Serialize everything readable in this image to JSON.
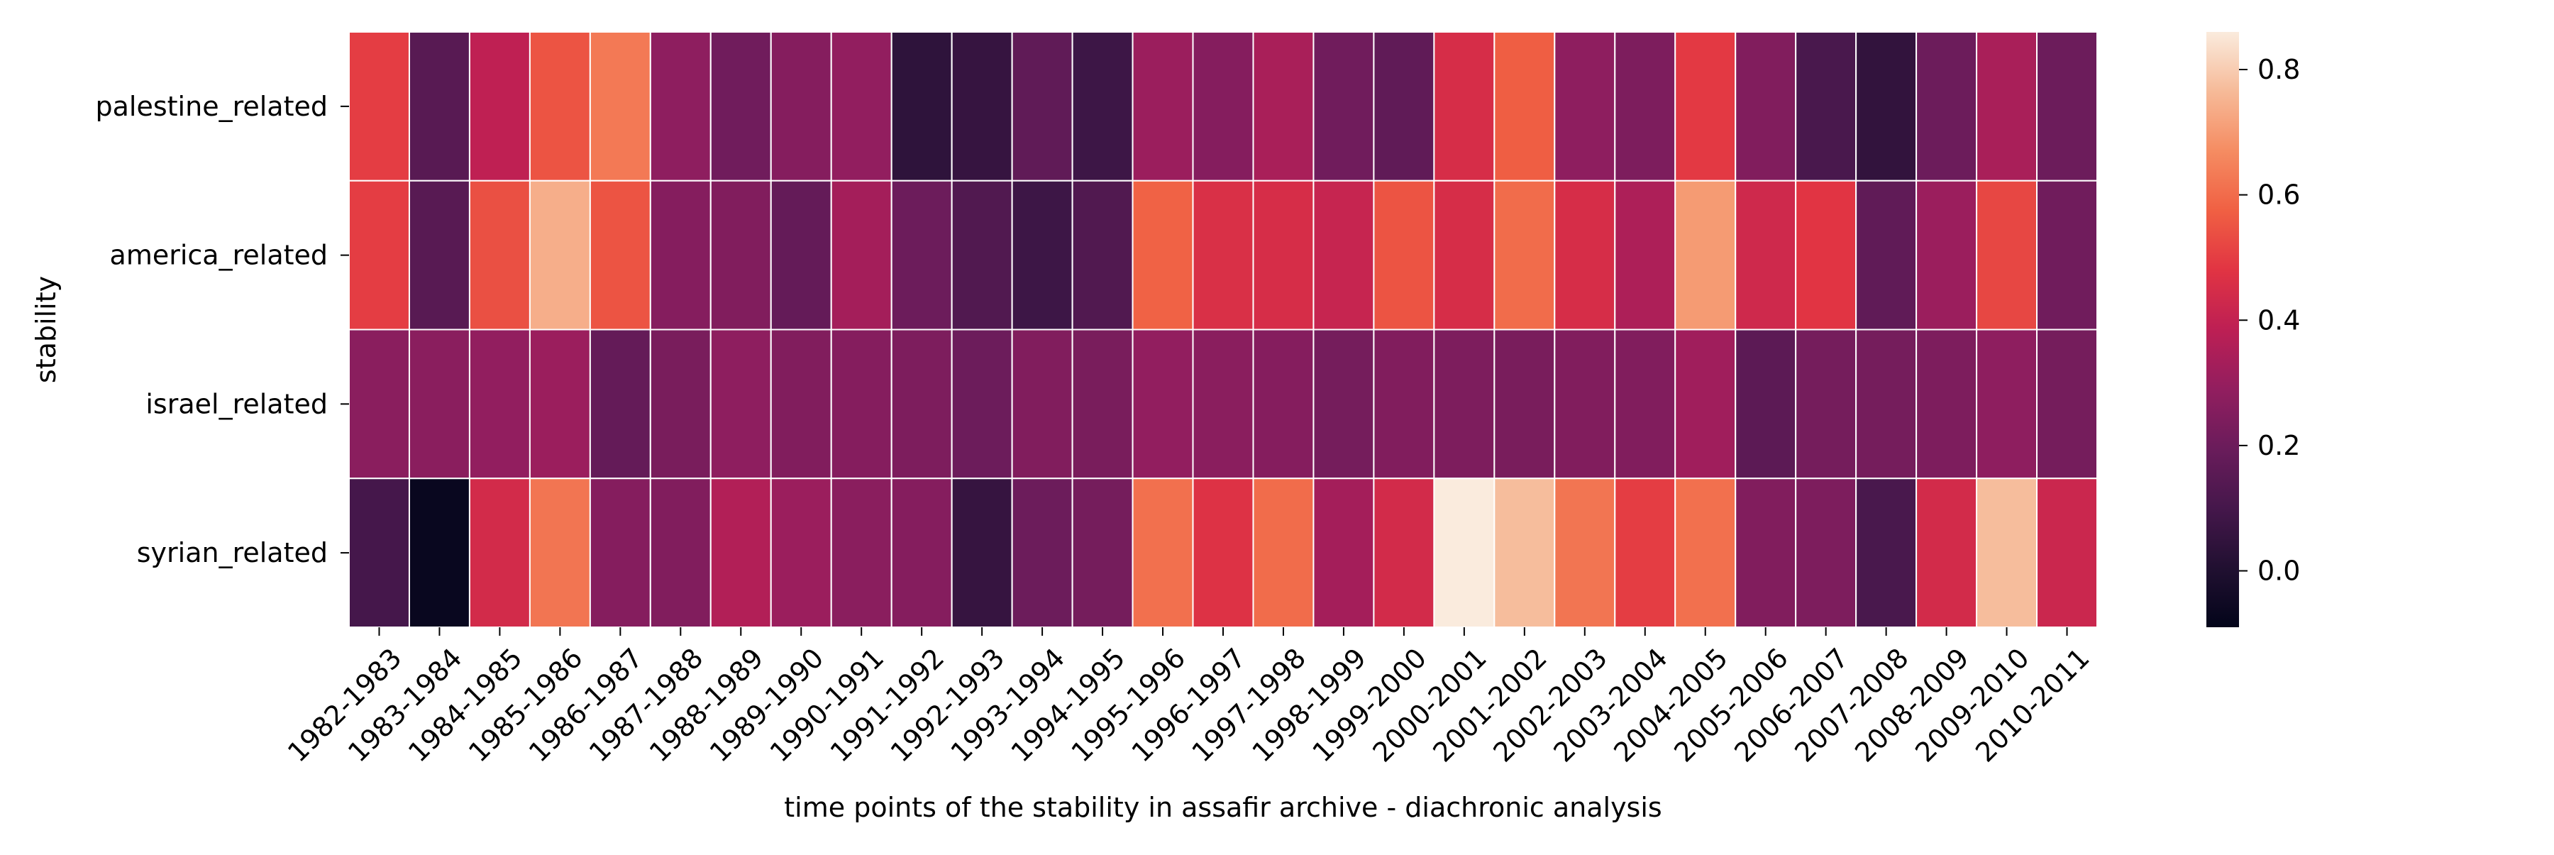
{
  "chart_data": {
    "type": "heatmap",
    "title": "",
    "xlabel": "time points of the stability in assafir archive - diachronic analysis",
    "ylabel": "stability",
    "x_categories": [
      "1982-1983",
      "1983-1984",
      "1984-1985",
      "1985-1986",
      "1986-1987",
      "1987-1988",
      "1988-1989",
      "1989-1990",
      "1990-1991",
      "1991-1992",
      "1992-1993",
      "1993-1994",
      "1994-1995",
      "1995-1996",
      "1996-1997",
      "1997-1998",
      "1998-1999",
      "1999-2000",
      "2000-2001",
      "2001-2002",
      "2002-2003",
      "2003-2004",
      "2004-2005",
      "2005-2006",
      "2006-2007",
      "2007-2008",
      "2008-2009",
      "2009-2010",
      "2010-2011"
    ],
    "y_categories": [
      "palestine_related",
      "america_related",
      "israel_related",
      "syrian_related"
    ],
    "values": [
      [
        0.5,
        0.15,
        0.39,
        0.55,
        0.63,
        0.28,
        0.21,
        0.26,
        0.29,
        0.04,
        0.06,
        0.17,
        0.08,
        0.31,
        0.26,
        0.34,
        0.21,
        0.17,
        0.45,
        0.57,
        0.28,
        0.24,
        0.49,
        0.25,
        0.11,
        0.05,
        0.2,
        0.34,
        0.2
      ],
      [
        0.5,
        0.15,
        0.54,
        0.74,
        0.55,
        0.26,
        0.25,
        0.18,
        0.33,
        0.2,
        0.13,
        0.08,
        0.13,
        0.58,
        0.46,
        0.45,
        0.41,
        0.55,
        0.45,
        0.6,
        0.45,
        0.35,
        0.7,
        0.43,
        0.48,
        0.17,
        0.31,
        0.52,
        0.21
      ],
      [
        0.27,
        0.27,
        0.29,
        0.31,
        0.18,
        0.23,
        0.28,
        0.25,
        0.26,
        0.24,
        0.2,
        0.25,
        0.23,
        0.29,
        0.27,
        0.26,
        0.22,
        0.25,
        0.24,
        0.23,
        0.25,
        0.25,
        0.32,
        0.16,
        0.22,
        0.22,
        0.24,
        0.28,
        0.22
      ],
      [
        0.1,
        -0.07,
        0.44,
        0.62,
        0.26,
        0.25,
        0.36,
        0.31,
        0.27,
        0.26,
        0.06,
        0.2,
        0.22,
        0.61,
        0.47,
        0.6,
        0.33,
        0.44,
        0.86,
        0.77,
        0.62,
        0.5,
        0.61,
        0.25,
        0.24,
        0.11,
        0.44,
        0.77,
        0.42
      ]
    ],
    "vmin": -0.09,
    "vmax": 0.86,
    "colorbar_ticks": [
      "0.0",
      "0.2",
      "0.4",
      "0.6",
      "0.8"
    ],
    "colormap": "rocket",
    "grid_lines": "white"
  }
}
